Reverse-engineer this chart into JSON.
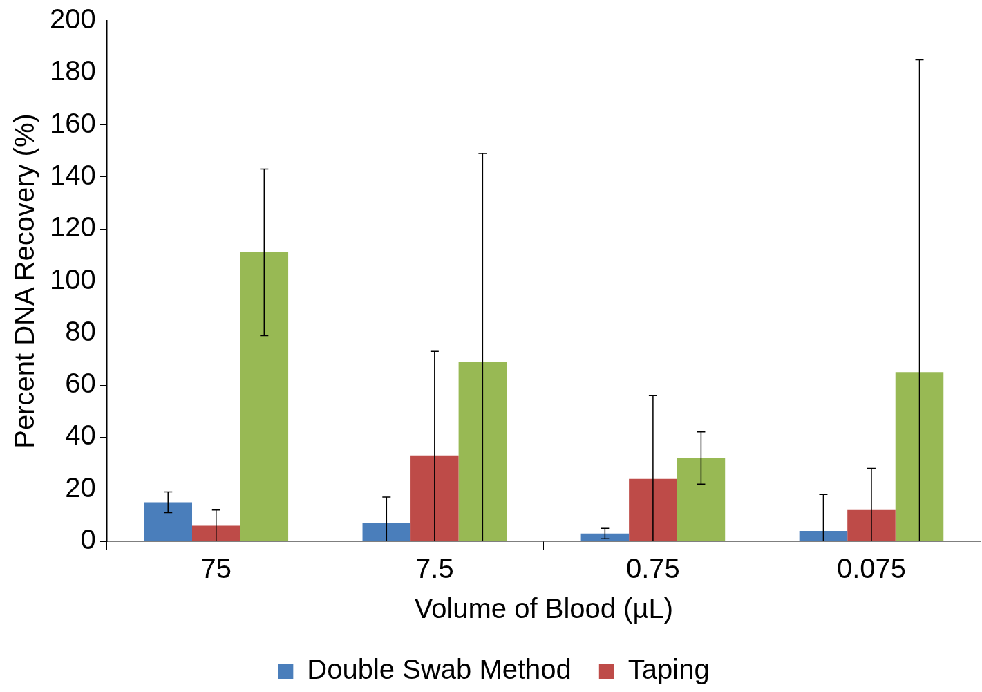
{
  "chart_data": {
    "type": "bar",
    "xlabel": "Volume of Blood (µL)",
    "ylabel": "Percent DNA Recovery (%)",
    "categories": [
      "75",
      "7.5",
      "0.75",
      "0.075"
    ],
    "series": [
      {
        "name": "Double Swab Method",
        "color": "#4a7ebb",
        "values": [
          15,
          7,
          3,
          4
        ],
        "errors": [
          [
            11,
            19
          ],
          [
            0,
            17
          ],
          [
            1,
            5
          ],
          [
            0,
            18
          ]
        ]
      },
      {
        "name": "Taping",
        "color": "#be4b48",
        "values": [
          6,
          33,
          24,
          12
        ],
        "errors": [
          [
            0,
            12
          ],
          [
            0,
            73
          ],
          [
            0,
            56
          ],
          [
            0,
            28
          ]
        ]
      },
      {
        "color": "#98b954",
        "values": [
          111,
          69,
          32,
          65
        ],
        "errors": [
          [
            79,
            143
          ],
          [
            0,
            149
          ],
          [
            22,
            42
          ],
          [
            0,
            185
          ]
        ]
      }
    ],
    "ylim": [
      0,
      200
    ],
    "yticks": [
      0,
      20,
      40,
      60,
      80,
      100,
      120,
      140,
      160,
      180,
      200
    ],
    "grid": false,
    "legend": "bottom"
  }
}
